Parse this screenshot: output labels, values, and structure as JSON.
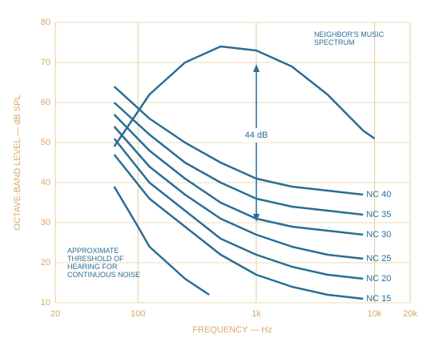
{
  "chart_data": {
    "type": "line",
    "xlabel": "FREQUENCY — Hz",
    "ylabel": "OCTAVE-BAND LEVEL — dB SPL",
    "x_scale": "log",
    "xlim": [
      20,
      20000
    ],
    "ylim": [
      10,
      80
    ],
    "xticks": [
      20,
      100,
      {
        "value": 1000,
        "label": "1k"
      },
      {
        "value": 10000,
        "label": "10k"
      },
      {
        "value": 20000,
        "label": "20k"
      }
    ],
    "yticks": [
      10,
      20,
      30,
      40,
      50,
      60,
      70,
      80
    ],
    "grid": true,
    "annotation": "44 dB",
    "series": [
      {
        "name": "NC 40",
        "color": "#2a6d94",
        "x": [
          63,
          125,
          250,
          500,
          1000,
          2000,
          4000,
          8000
        ],
        "values": [
          64,
          56,
          50,
          45,
          41,
          39,
          38,
          37
        ]
      },
      {
        "name": "NC 35",
        "color": "#2a6d94",
        "x": [
          63,
          125,
          250,
          500,
          1000,
          2000,
          4000,
          8000
        ],
        "values": [
          60,
          52,
          45,
          40,
          36,
          34,
          33,
          32
        ]
      },
      {
        "name": "NC 30",
        "color": "#2a6d94",
        "x": [
          63,
          125,
          250,
          500,
          1000,
          2000,
          4000,
          8000
        ],
        "values": [
          57,
          48,
          41,
          35,
          31,
          29,
          28,
          27
        ]
      },
      {
        "name": "NC 25",
        "color": "#2a6d94",
        "x": [
          63,
          125,
          250,
          500,
          1000,
          2000,
          4000,
          8000
        ],
        "values": [
          54,
          44,
          37,
          31,
          27,
          24,
          22,
          21
        ]
      },
      {
        "name": "NC 20",
        "color": "#2a6d94",
        "x": [
          63,
          125,
          250,
          500,
          1000,
          2000,
          4000,
          8000
        ],
        "values": [
          51,
          40,
          33,
          26,
          22,
          19,
          17,
          16
        ]
      },
      {
        "name": "NC 15",
        "color": "#2a6d94",
        "x": [
          63,
          125,
          250,
          500,
          1000,
          2000,
          4000,
          8000
        ],
        "values": [
          47,
          36,
          29,
          22,
          17,
          14,
          12,
          11
        ]
      },
      {
        "name": "NEIGHBOR'S MUSIC SPECTRUM",
        "color": "#2a6d94",
        "x": [
          63,
          125,
          250,
          500,
          1000,
          2000,
          4000,
          8000,
          10000
        ],
        "values": [
          49,
          62,
          70,
          74,
          73,
          69,
          62,
          53,
          51
        ]
      },
      {
        "name": "APPROXIMATE THRESHOLD OF HEARING FOR CONTINUOUS NOISE",
        "color": "#2a6d94",
        "x": [
          63,
          100,
          125,
          250,
          400
        ],
        "values": [
          39,
          29,
          24,
          16,
          12
        ]
      }
    ]
  }
}
